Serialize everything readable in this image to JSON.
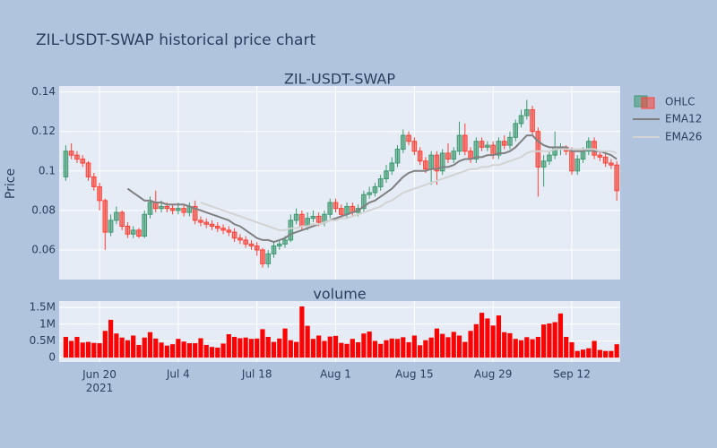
{
  "title": "ZIL-USDT-SWAP historical price chart",
  "chart_data": [
    {
      "type": "candlestick",
      "title": "ZIL-USDT-SWAP",
      "name": "OHLC",
      "ylabel": "Price",
      "increasing_color": "#3d9970",
      "decreasing_color": "#ff4136",
      "x": [
        "2021-06-14",
        "2021-06-15",
        "2021-06-16",
        "2021-06-17",
        "2021-06-18",
        "2021-06-19",
        "2021-06-20",
        "2021-06-21",
        "2021-06-22",
        "2021-06-23",
        "2021-06-24",
        "2021-06-25",
        "2021-06-26",
        "2021-06-27",
        "2021-06-28",
        "2021-06-29",
        "2021-06-30",
        "2021-07-01",
        "2021-07-02",
        "2021-07-03",
        "2021-07-04",
        "2021-07-05",
        "2021-07-06",
        "2021-07-07",
        "2021-07-08",
        "2021-07-09",
        "2021-07-10",
        "2021-07-11",
        "2021-07-12",
        "2021-07-13",
        "2021-07-14",
        "2021-07-15",
        "2021-07-16",
        "2021-07-17",
        "2021-07-18",
        "2021-07-19",
        "2021-07-20",
        "2021-07-21",
        "2021-07-22",
        "2021-07-23",
        "2021-07-24",
        "2021-07-25",
        "2021-07-26",
        "2021-07-27",
        "2021-07-28",
        "2021-07-29",
        "2021-07-30",
        "2021-07-31",
        "2021-08-01",
        "2021-08-02",
        "2021-08-03",
        "2021-08-04",
        "2021-08-05",
        "2021-08-06",
        "2021-08-07",
        "2021-08-08",
        "2021-08-09",
        "2021-08-10",
        "2021-08-11",
        "2021-08-12",
        "2021-08-13",
        "2021-08-14",
        "2021-08-15",
        "2021-08-16",
        "2021-08-17",
        "2021-08-18",
        "2021-08-19",
        "2021-08-20",
        "2021-08-21",
        "2021-08-22",
        "2021-08-23",
        "2021-08-24",
        "2021-08-25",
        "2021-08-26",
        "2021-08-27",
        "2021-08-28",
        "2021-08-29",
        "2021-08-30",
        "2021-08-31",
        "2021-09-01",
        "2021-09-02",
        "2021-09-03",
        "2021-09-04",
        "2021-09-05",
        "2021-09-06",
        "2021-09-07",
        "2021-09-08",
        "2021-09-09",
        "2021-09-10",
        "2021-09-11",
        "2021-09-12",
        "2021-09-13",
        "2021-09-14",
        "2021-09-15",
        "2021-09-16",
        "2021-09-17",
        "2021-09-18",
        "2021-09-19",
        "2021-09-20"
      ],
      "open": [
        0.097,
        0.11,
        0.108,
        0.106,
        0.104,
        0.097,
        0.092,
        0.085,
        0.069,
        0.075,
        0.079,
        0.072,
        0.068,
        0.07,
        0.067,
        0.078,
        0.084,
        0.081,
        0.082,
        0.081,
        0.08,
        0.081,
        0.079,
        0.082,
        0.075,
        0.074,
        0.073,
        0.072,
        0.071,
        0.07,
        0.069,
        0.066,
        0.065,
        0.063,
        0.062,
        0.06,
        0.053,
        0.058,
        0.062,
        0.063,
        0.065,
        0.075,
        0.078,
        0.072,
        0.076,
        0.077,
        0.074,
        0.078,
        0.084,
        0.081,
        0.078,
        0.082,
        0.079,
        0.081,
        0.088,
        0.089,
        0.092,
        0.096,
        0.1,
        0.104,
        0.111,
        0.118,
        0.115,
        0.11,
        0.105,
        0.101,
        0.108,
        0.1,
        0.109,
        0.106,
        0.11,
        0.118,
        0.11,
        0.106,
        0.115,
        0.112,
        0.113,
        0.108,
        0.115,
        0.113,
        0.117,
        0.124,
        0.128,
        0.131,
        0.12,
        0.102,
        0.105,
        0.108,
        0.112,
        0.112,
        0.11,
        0.1,
        0.106,
        0.11,
        0.115,
        0.108,
        0.107,
        0.104,
        0.103
      ],
      "high": [
        0.113,
        0.114,
        0.11,
        0.108,
        0.105,
        0.099,
        0.094,
        0.086,
        0.078,
        0.082,
        0.08,
        0.074,
        0.072,
        0.071,
        0.08,
        0.087,
        0.09,
        0.085,
        0.084,
        0.083,
        0.084,
        0.083,
        0.084,
        0.085,
        0.077,
        0.076,
        0.075,
        0.074,
        0.073,
        0.072,
        0.071,
        0.068,
        0.067,
        0.065,
        0.064,
        0.061,
        0.06,
        0.064,
        0.065,
        0.067,
        0.078,
        0.081,
        0.08,
        0.079,
        0.08,
        0.079,
        0.08,
        0.086,
        0.086,
        0.083,
        0.084,
        0.084,
        0.083,
        0.09,
        0.092,
        0.094,
        0.098,
        0.103,
        0.107,
        0.113,
        0.121,
        0.12,
        0.117,
        0.112,
        0.107,
        0.11,
        0.11,
        0.111,
        0.114,
        0.112,
        0.125,
        0.124,
        0.112,
        0.117,
        0.117,
        0.115,
        0.115,
        0.117,
        0.118,
        0.12,
        0.126,
        0.131,
        0.136,
        0.133,
        0.122,
        0.108,
        0.11,
        0.12,
        0.114,
        0.113,
        0.112,
        0.108,
        0.112,
        0.117,
        0.117,
        0.11,
        0.109,
        0.106,
        0.105
      ],
      "low": [
        0.095,
        0.106,
        0.104,
        0.102,
        0.095,
        0.09,
        0.08,
        0.06,
        0.067,
        0.073,
        0.07,
        0.066,
        0.066,
        0.066,
        0.066,
        0.076,
        0.079,
        0.079,
        0.079,
        0.078,
        0.078,
        0.077,
        0.077,
        0.073,
        0.072,
        0.071,
        0.07,
        0.069,
        0.068,
        0.067,
        0.064,
        0.063,
        0.061,
        0.06,
        0.057,
        0.051,
        0.051,
        0.056,
        0.06,
        0.061,
        0.064,
        0.073,
        0.07,
        0.07,
        0.074,
        0.072,
        0.072,
        0.076,
        0.079,
        0.076,
        0.076,
        0.077,
        0.077,
        0.079,
        0.086,
        0.087,
        0.09,
        0.094,
        0.098,
        0.102,
        0.109,
        0.113,
        0.108,
        0.103,
        0.099,
        0.093,
        0.093,
        0.098,
        0.104,
        0.104,
        0.108,
        0.108,
        0.104,
        0.104,
        0.11,
        0.11,
        0.106,
        0.106,
        0.111,
        0.111,
        0.115,
        0.122,
        0.126,
        0.118,
        0.087,
        0.092,
        0.103,
        0.106,
        0.108,
        0.108,
        0.098,
        0.098,
        0.104,
        0.108,
        0.106,
        0.105,
        0.102,
        0.101,
        0.085
      ],
      "close": [
        0.11,
        0.108,
        0.106,
        0.104,
        0.097,
        0.092,
        0.085,
        0.069,
        0.075,
        0.079,
        0.072,
        0.068,
        0.07,
        0.067,
        0.078,
        0.084,
        0.081,
        0.082,
        0.081,
        0.08,
        0.081,
        0.079,
        0.082,
        0.075,
        0.074,
        0.073,
        0.072,
        0.071,
        0.07,
        0.069,
        0.066,
        0.065,
        0.063,
        0.062,
        0.06,
        0.053,
        0.058,
        0.062,
        0.063,
        0.065,
        0.075,
        0.078,
        0.072,
        0.076,
        0.077,
        0.074,
        0.078,
        0.084,
        0.081,
        0.078,
        0.082,
        0.079,
        0.081,
        0.088,
        0.089,
        0.092,
        0.096,
        0.1,
        0.104,
        0.111,
        0.118,
        0.115,
        0.11,
        0.105,
        0.101,
        0.108,
        0.1,
        0.109,
        0.106,
        0.11,
        0.118,
        0.11,
        0.106,
        0.115,
        0.112,
        0.113,
        0.108,
        0.115,
        0.113,
        0.117,
        0.124,
        0.128,
        0.131,
        0.12,
        0.102,
        0.105,
        0.108,
        0.112,
        0.112,
        0.11,
        0.1,
        0.106,
        0.11,
        0.115,
        0.108,
        0.107,
        0.104,
        0.103,
        0.09
      ],
      "series": [
        {
          "name": "EMA12",
          "color": "#808080",
          "values": [
            null,
            null,
            null,
            null,
            null,
            null,
            null,
            null,
            null,
            null,
            null,
            0.091,
            0.089,
            0.087,
            0.085,
            0.085,
            0.084,
            0.084,
            0.083,
            0.083,
            0.083,
            0.083,
            0.082,
            0.081,
            0.08,
            0.079,
            0.078,
            0.077,
            0.076,
            0.075,
            0.073,
            0.072,
            0.07,
            0.068,
            0.066,
            0.065,
            0.065,
            0.064,
            0.065,
            0.066,
            0.068,
            0.069,
            0.07,
            0.071,
            0.072,
            0.073,
            0.074,
            0.075,
            0.076,
            0.077,
            0.078,
            0.079,
            0.08,
            0.082,
            0.084,
            0.085,
            0.087,
            0.089,
            0.091,
            0.094,
            0.097,
            0.099,
            0.1,
            0.1,
            0.1,
            0.101,
            0.101,
            0.102,
            0.102,
            0.103,
            0.105,
            0.106,
            0.106,
            0.107,
            0.107,
            0.108,
            0.108,
            0.109,
            0.109,
            0.11,
            0.112,
            0.115,
            0.118,
            0.118,
            0.115,
            0.113,
            0.112,
            0.112,
            0.112,
            0.112,
            0.11,
            0.11,
            0.11,
            0.111,
            0.11,
            0.11,
            0.109,
            0.108,
            0.106
          ]
        },
        {
          "name": "EMA26",
          "color": "#d3d3d3",
          "values": [
            null,
            null,
            null,
            null,
            null,
            null,
            null,
            null,
            null,
            null,
            null,
            null,
            null,
            null,
            null,
            null,
            null,
            null,
            null,
            null,
            null,
            null,
            null,
            null,
            0.084,
            0.083,
            0.082,
            0.081,
            0.08,
            0.079,
            0.078,
            0.077,
            0.076,
            0.075,
            0.074,
            0.073,
            0.072,
            0.071,
            0.07,
            0.07,
            0.071,
            0.071,
            0.072,
            0.072,
            0.073,
            0.073,
            0.074,
            0.075,
            0.075,
            0.076,
            0.076,
            0.077,
            0.078,
            0.079,
            0.08,
            0.081,
            0.082,
            0.084,
            0.085,
            0.087,
            0.089,
            0.09,
            0.091,
            0.092,
            0.093,
            0.094,
            0.095,
            0.096,
            0.097,
            0.098,
            0.099,
            0.1,
            0.101,
            0.101,
            0.102,
            0.102,
            0.103,
            0.103,
            0.104,
            0.105,
            0.106,
            0.107,
            0.109,
            0.11,
            0.11,
            0.11,
            0.11,
            0.111,
            0.111,
            0.111,
            0.111,
            0.111,
            0.111,
            0.111,
            0.111,
            0.11,
            0.11,
            0.11,
            0.109
          ]
        }
      ],
      "xlim": [
        "2021-06-12T19:40:00Z",
        "2021-09-20T14:40:00Z"
      ],
      "ylim": [
        0.045,
        0.143
      ],
      "yticks": [
        0.06,
        0.08,
        0.1,
        0.12,
        0.14
      ],
      "grid": true
    },
    {
      "type": "bar",
      "title": "volume",
      "color": "#ff0000",
      "x": [
        "2021-06-14",
        "2021-06-15",
        "2021-06-16",
        "2021-06-17",
        "2021-06-18",
        "2021-06-19",
        "2021-06-20",
        "2021-06-21",
        "2021-06-22",
        "2021-06-23",
        "2021-06-24",
        "2021-06-25",
        "2021-06-26",
        "2021-06-27",
        "2021-06-28",
        "2021-06-29",
        "2021-06-30",
        "2021-07-01",
        "2021-07-02",
        "2021-07-03",
        "2021-07-04",
        "2021-07-05",
        "2021-07-06",
        "2021-07-07",
        "2021-07-08",
        "2021-07-09",
        "2021-07-10",
        "2021-07-11",
        "2021-07-12",
        "2021-07-13",
        "2021-07-14",
        "2021-07-15",
        "2021-07-16",
        "2021-07-17",
        "2021-07-18",
        "2021-07-19",
        "2021-07-20",
        "2021-07-21",
        "2021-07-22",
        "2021-07-23",
        "2021-07-24",
        "2021-07-25",
        "2021-07-26",
        "2021-07-27",
        "2021-07-28",
        "2021-07-29",
        "2021-07-30",
        "2021-07-31",
        "2021-08-01",
        "2021-08-02",
        "2021-08-03",
        "2021-08-04",
        "2021-08-05",
        "2021-08-06",
        "2021-08-07",
        "2021-08-08",
        "2021-08-09",
        "2021-08-10",
        "2021-08-11",
        "2021-08-12",
        "2021-08-13",
        "2021-08-14",
        "2021-08-15",
        "2021-08-16",
        "2021-08-17",
        "2021-08-18",
        "2021-08-19",
        "2021-08-20",
        "2021-08-21",
        "2021-08-22",
        "2021-08-23",
        "2021-08-24",
        "2021-08-25",
        "2021-08-26",
        "2021-08-27",
        "2021-08-28",
        "2021-08-29",
        "2021-08-30",
        "2021-08-31",
        "2021-09-01",
        "2021-09-02",
        "2021-09-03",
        "2021-09-04",
        "2021-09-05",
        "2021-09-06",
        "2021-09-07",
        "2021-09-08",
        "2021-09-09",
        "2021-09-10",
        "2021-09-11",
        "2021-09-12",
        "2021-09-13",
        "2021-09-14",
        "2021-09-15",
        "2021-09-16",
        "2021-09-17",
        "2021-09-18",
        "2021-09-19",
        "2021-09-20"
      ],
      "values": [
        620000,
        500000,
        620000,
        450000,
        470000,
        440000,
        430000,
        800000,
        1130000,
        720000,
        600000,
        520000,
        660000,
        380000,
        600000,
        760000,
        570000,
        450000,
        360000,
        400000,
        560000,
        480000,
        430000,
        430000,
        580000,
        380000,
        320000,
        300000,
        420000,
        700000,
        620000,
        580000,
        600000,
        560000,
        570000,
        850000,
        620000,
        470000,
        570000,
        870000,
        520000,
        470000,
        1530000,
        950000,
        560000,
        660000,
        500000,
        630000,
        650000,
        440000,
        410000,
        560000,
        460000,
        720000,
        780000,
        500000,
        410000,
        520000,
        570000,
        560000,
        610000,
        460000,
        660000,
        370000,
        520000,
        600000,
        870000,
        710000,
        610000,
        770000,
        660000,
        470000,
        800000,
        1000000,
        1340000,
        1170000,
        960000,
        1260000,
        760000,
        730000,
        560000,
        520000,
        610000,
        550000,
        620000,
        990000,
        1020000,
        1060000,
        1320000,
        620000,
        460000,
        200000,
        240000,
        280000,
        500000,
        230000,
        200000,
        200000,
        400000
      ],
      "xlim": [
        "2021-06-12T19:40:00Z",
        "2021-09-20T14:40:00Z"
      ],
      "xticks": [
        {
          "value": "2021-06-20",
          "label": "Jun 20\n2021"
        },
        {
          "value": "2021-07-04",
          "label": "Jul 4"
        },
        {
          "value": "2021-07-18",
          "label": "Jul 18"
        },
        {
          "value": "2021-08-01",
          "label": "Aug 1"
        },
        {
          "value": "2021-08-15",
          "label": "Aug 15"
        },
        {
          "value": "2021-08-29",
          "label": "Aug 29"
        },
        {
          "value": "2021-09-12",
          "label": "Sep 12"
        }
      ],
      "ylim": [
        -130000,
        1690000
      ],
      "yticks": [
        0,
        {
          "value": 500000,
          "label": "0.5M"
        },
        {
          "value": 1000000,
          "label": "1M"
        },
        {
          "value": 1500000,
          "label": "1.5M"
        }
      ],
      "grid": true
    }
  ]
}
